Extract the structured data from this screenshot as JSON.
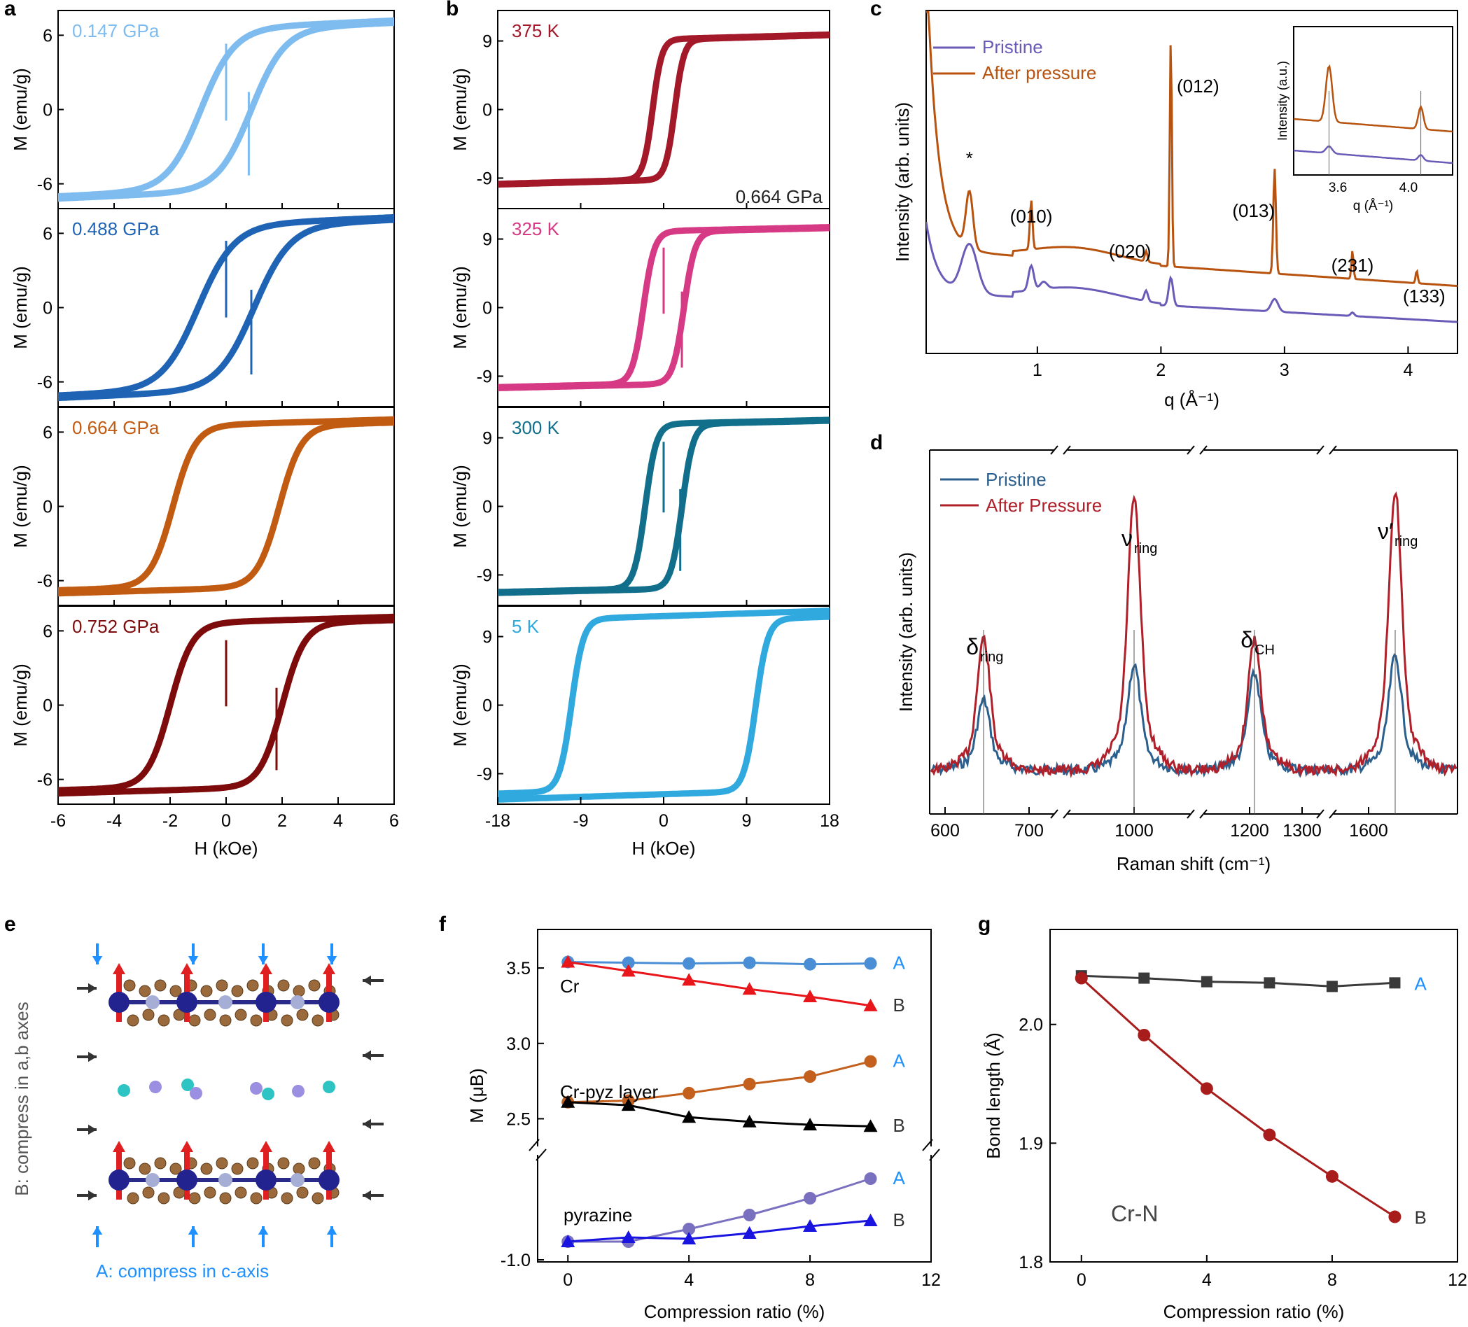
{
  "panel_labels": [
    "a",
    "b",
    "c",
    "d",
    "e",
    "f",
    "g"
  ],
  "chart_data": [
    {
      "id": "a",
      "type": "line",
      "xlabel": "H (kOe)",
      "ylabel": "M (emu/g)",
      "xlim": [
        -6,
        6
      ],
      "xticks": [
        -6,
        -4,
        -2,
        0,
        2,
        4,
        6
      ],
      "ylim": [
        -8,
        8
      ],
      "yticks": [
        -6,
        0,
        6
      ],
      "series": [
        {
          "name": "0.147 GPa",
          "color": "#7ebcf0",
          "Ms": 7.1,
          "Hc": 0.9,
          "w": 1.2,
          "jump": 4.5,
          "t": 0.6
        },
        {
          "name": "0.488 GPa",
          "color": "#1f63b5",
          "Ms": 7.2,
          "Hc": 1.0,
          "w": 1.3,
          "jump": 4.0,
          "t": 0.6
        },
        {
          "name": "0.664 GPa",
          "color": "#c25b12",
          "Ms": 6.9,
          "Hc": 1.9,
          "w": 0.8,
          "jump": 0.0,
          "t": 0.4
        },
        {
          "name": "0.752 GPa",
          "color": "#7e0b0b",
          "Ms": 7.0,
          "Hc": 2.0,
          "w": 0.8,
          "jump": 0.5,
          "t": 0.4
        }
      ]
    },
    {
      "id": "b",
      "type": "line",
      "xlabel": "H (kOe)",
      "ylabel": "M (emu/g)",
      "xlim": [
        -18,
        18
      ],
      "xticks": [
        -18,
        -9,
        0,
        9,
        18
      ],
      "ylim": [
        -13,
        13
      ],
      "yticks": [
        -9,
        0,
        9
      ],
      "note": "0.664 GPa",
      "series": [
        {
          "name": "375 K",
          "color": "#a3192a",
          "Ms": 9.8,
          "Hc": 1.2,
          "w": 1.0,
          "jump": 0.0,
          "t": 0.6
        },
        {
          "name": "325 K",
          "color": "#d63a84",
          "Ms": 10.5,
          "Hc": 2.2,
          "w": 1.2,
          "jump": 4.0,
          "t": 0.5
        },
        {
          "name": "300 K",
          "color": "#126f8b",
          "Ms": 11.3,
          "Hc": 2.0,
          "w": 1.2,
          "jump": 4.0,
          "t": 0.5
        },
        {
          "name": "5 K",
          "color": "#2fa9de",
          "Ms": 12.0,
          "Hc": 10.0,
          "w": 1.3,
          "jump": 0.0,
          "t": 0.7
        }
      ]
    },
    {
      "id": "c",
      "type": "line",
      "xlabel": "q (Å⁻¹)",
      "ylabel": "Intensity (arb. units)",
      "xlim": [
        0.1,
        4.4
      ],
      "xticks": [
        1,
        2,
        3,
        4
      ],
      "series": [
        {
          "name": "Pristine",
          "color": "#6a5bb8"
        },
        {
          "name": "After pressure",
          "color": "#b8520f"
        }
      ],
      "peaks": [
        {
          "label": "*",
          "q": 0.45
        },
        {
          "label": "(010)",
          "q": 0.95
        },
        {
          "label": "(020)",
          "q": 1.88
        },
        {
          "label": "(012)",
          "q": 2.08
        },
        {
          "label": "(013)",
          "q": 2.92
        },
        {
          "label": "(231)",
          "q": 3.55
        },
        {
          "label": "(133)",
          "q": 4.07
        }
      ],
      "inset": {
        "ylabel": "Intensity (a.u.)",
        "xlabel": "q (Å⁻¹)",
        "xlim": [
          3.35,
          4.25
        ],
        "xticks": [
          3.6,
          4.0
        ]
      }
    },
    {
      "id": "d",
      "type": "line",
      "xlabel": "Raman shift (cm⁻¹)",
      "ylabel": "Intensity (arb. units)",
      "xtick_labels": [
        "600",
        "700",
        "1000",
        "1200",
        "1300",
        "1600"
      ],
      "series": [
        {
          "name": "Pristine",
          "color": "#2b5f8e"
        },
        {
          "name": "After Pressure",
          "color": "#b0202a"
        }
      ],
      "peaks": [
        {
          "label": "δ",
          "sub": "ring",
          "shift": 645
        },
        {
          "label": "ν",
          "sub": "ring",
          "shift": 1015
        },
        {
          "label": "δ",
          "sub": "CH",
          "shift": 1232
        },
        {
          "label": "ν′",
          "sub": "ring",
          "shift": 1610
        }
      ]
    },
    {
      "id": "f",
      "type": "line",
      "xlabel": "Compression ratio (%)",
      "ylabel": "M (μB)",
      "xlim": [
        -1,
        12
      ],
      "xticks": [
        0,
        4,
        8,
        12
      ],
      "yticks_upper": [
        2.5,
        3.0,
        3.5
      ],
      "ytick_lower": -1.0,
      "x": [
        0,
        2,
        4,
        6,
        8,
        10
      ],
      "groups": [
        {
          "name": "Cr",
          "series": [
            {
              "name": "A",
              "marker": "circle",
              "color": "#4a8fd6",
              "values": [
                3.54,
                3.535,
                3.53,
                3.535,
                3.525,
                3.53
              ]
            },
            {
              "name": "B",
              "marker": "triangle",
              "color": "#e8151b",
              "values": [
                3.54,
                3.48,
                3.42,
                3.36,
                3.31,
                3.25
              ]
            }
          ]
        },
        {
          "name": "Cr-pyz layer",
          "series": [
            {
              "name": "A",
              "marker": "circle",
              "color": "#c4601d",
              "values": [
                2.61,
                2.62,
                2.67,
                2.73,
                2.78,
                2.88
              ]
            },
            {
              "name": "B",
              "marker": "triangle",
              "color": "#000000",
              "values": [
                2.61,
                2.59,
                2.51,
                2.48,
                2.46,
                2.45
              ]
            }
          ]
        },
        {
          "name": "pyrazine",
          "series": [
            {
              "name": "A",
              "marker": "circle",
              "color": "#7a70c0",
              "values": [
                -0.87,
                -0.87,
                -0.78,
                -0.68,
                -0.56,
                -0.42
              ]
            },
            {
              "name": "B",
              "marker": "triangle",
              "color": "#1a14e0",
              "values": [
                -0.87,
                -0.84,
                -0.85,
                -0.81,
                -0.76,
                -0.72
              ]
            }
          ]
        }
      ]
    },
    {
      "id": "g",
      "type": "line",
      "xlabel": "Compression ratio (%)",
      "ylabel": "Bond length (Å)",
      "xlim": [
        -1,
        12
      ],
      "xticks": [
        0,
        4,
        8,
        12
      ],
      "ylim": [
        1.8,
        2.08
      ],
      "yticks": [
        1.8,
        1.9,
        2.0
      ],
      "annotation": "Cr-N",
      "x": [
        0,
        2,
        4,
        6,
        8,
        10
      ],
      "series": [
        {
          "name": "A",
          "marker": "square",
          "color": "#3a3a3a",
          "values": [
            2.041,
            2.039,
            2.036,
            2.035,
            2.032,
            2.035
          ]
        },
        {
          "name": "B",
          "marker": "circle",
          "color": "#a81c1c",
          "values": [
            2.039,
            1.991,
            1.946,
            1.907,
            1.872,
            1.838
          ]
        }
      ]
    }
  ],
  "panel_e": {
    "label_A": "A: compress in c-axis",
    "label_B": "B: compress in a,b axes"
  }
}
